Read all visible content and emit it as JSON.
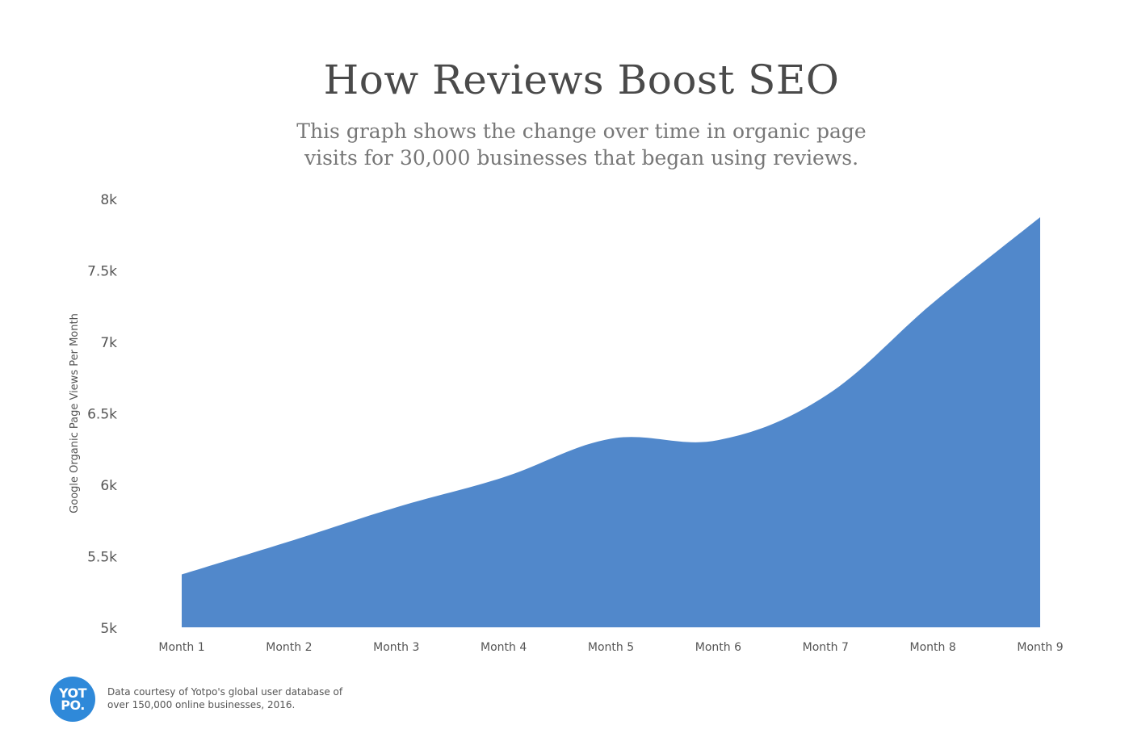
{
  "chart_data": {
    "type": "area",
    "title": "How Reviews Boost SEO",
    "subtitle_lines": [
      "This graph shows the change over time in organic page",
      "visits for 30,000 businesses that began using reviews."
    ],
    "xlabel": "",
    "ylabel": "Google Organic Page Views Per Month",
    "categories": [
      "Month 1",
      "Month 2",
      "Month 3",
      "Month 4",
      "Month 5",
      "Month 6",
      "Month 7",
      "Month 8",
      "Month 9"
    ],
    "y_ticks": [
      "5k",
      "5.5k",
      "6k",
      "6.5k",
      "7k",
      "7.5k",
      "8k"
    ],
    "ylim": [
      5000,
      8000
    ],
    "series": [
      {
        "values": [
          5370,
          5600,
          5840,
          6050,
          6320,
          6310,
          6620,
          7270,
          7870
        ]
      }
    ],
    "fill_color": "#5188cb",
    "grid": false,
    "legend": "none"
  },
  "footer": {
    "logo_line1": "YOT",
    "logo_line2": "PO.",
    "logo_color": "#2f89d9",
    "note_line1": "Data courtesy of Yotpo's global user database of",
    "note_line2": "over 150,000 online businesses, 2016."
  }
}
